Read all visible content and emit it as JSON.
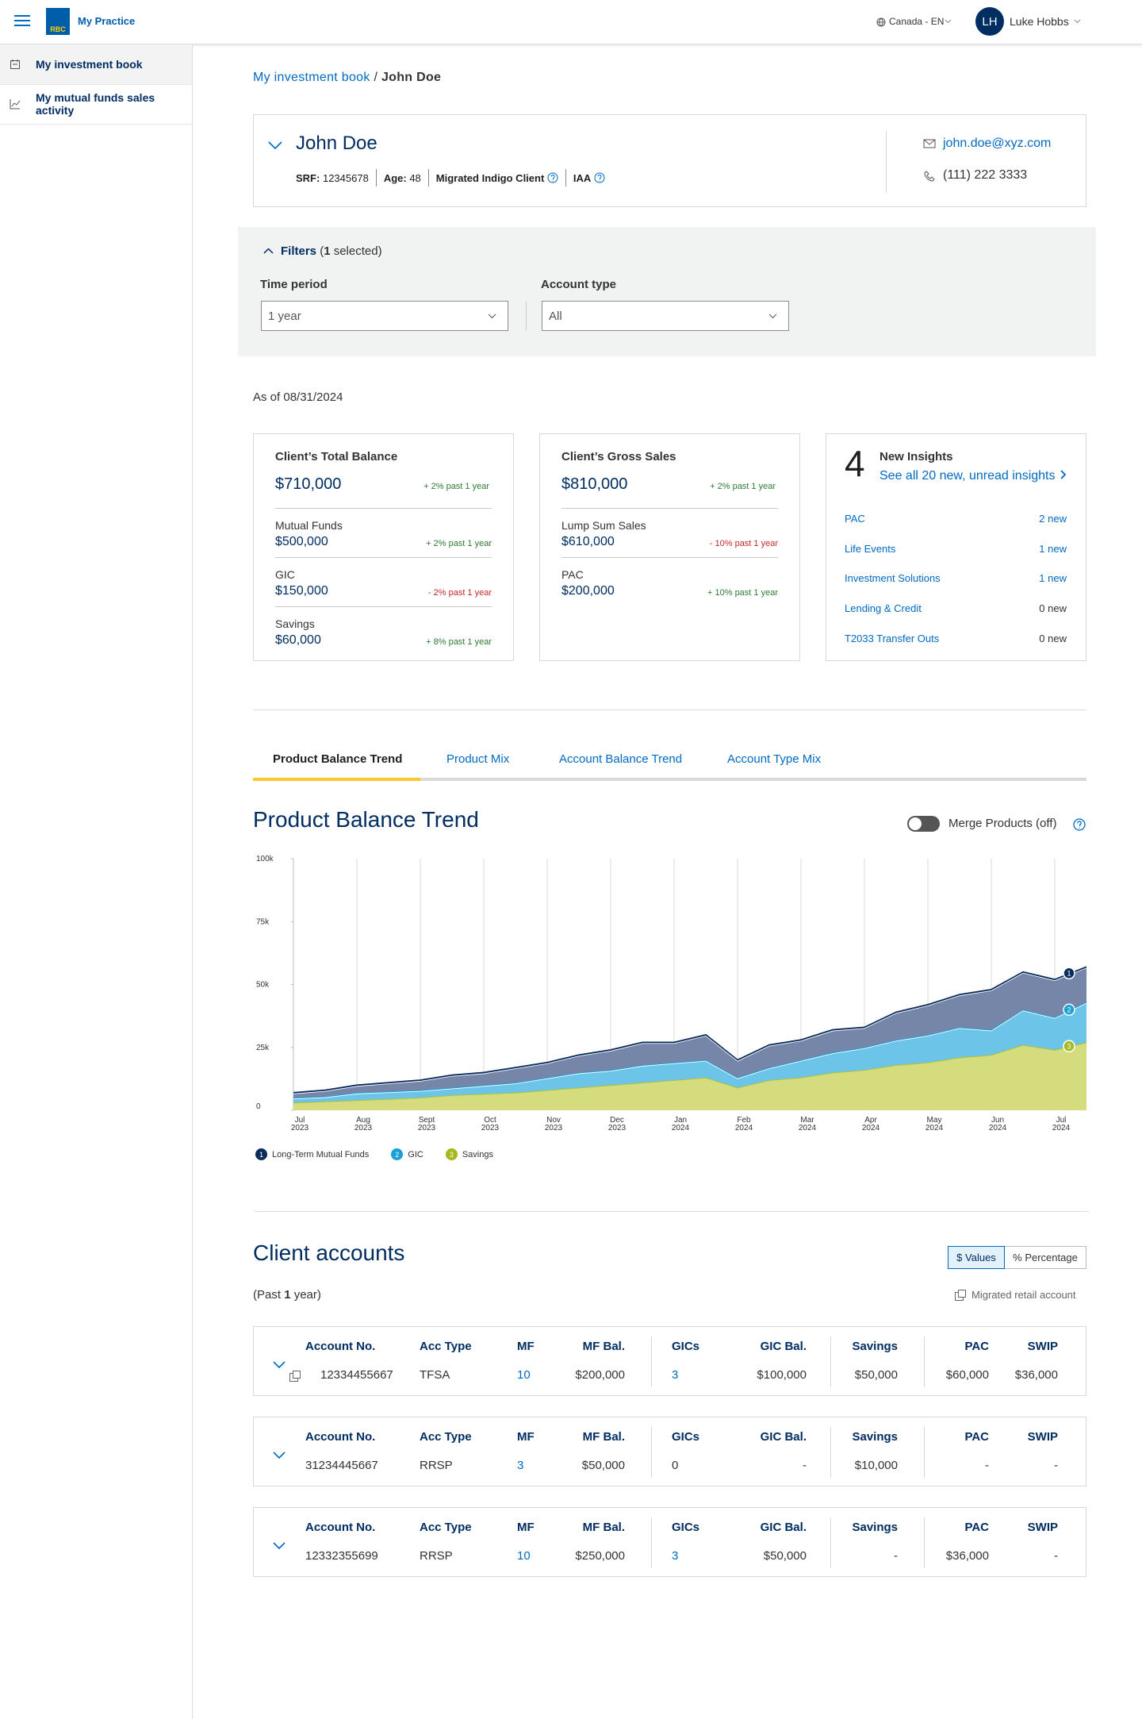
{
  "header": {
    "logo": "RBC",
    "brand": "My Practice",
    "locale": "Canada - EN",
    "user_initials": "LH",
    "user_name": "Luke Hobbs"
  },
  "sidebar": {
    "items": [
      "My investment book",
      "My mutual funds sales activity"
    ]
  },
  "breadcrumb": {
    "items": [
      "My investment book",
      "John Doe"
    ],
    "separator": "/"
  },
  "client": {
    "name": "John Doe",
    "srf_label": "SRF:",
    "srf": "12345678",
    "age_label": "Age:",
    "age": "48",
    "tags": [
      "Migrated Indigo Client",
      "IAA"
    ],
    "email": "john.doe@xyz.com",
    "phone": "(111) 222 3333"
  },
  "filters": {
    "title": "Filters",
    "count_open": "(",
    "count": "1",
    "count_close": " selected)",
    "fields": [
      {
        "label": "Time period",
        "value": "1 year"
      },
      {
        "label": "Account type",
        "value": "All"
      }
    ]
  },
  "as_of": "As of 08/31/2024",
  "cards": {
    "balance": {
      "title": "Client’s Total Balance",
      "total": "$710,000",
      "total_change": "+ 2% past 1 year",
      "total_change_color": "#2e7d32",
      "items": [
        {
          "label": "Mutual Funds",
          "value": "$500,000",
          "change": "+ 2% past 1 year",
          "change_color": "#2e7d32"
        },
        {
          "label": "GIC",
          "value": "$150,000",
          "change": "- 2% past 1 year",
          "change_color": "#c62828"
        },
        {
          "label": "Savings",
          "value": "$60,000",
          "change": "+ 8% past 1 year",
          "change_color": "#2e7d32"
        }
      ]
    },
    "gross": {
      "title": "Client’s Gross Sales",
      "total": "$810,000",
      "total_change": "+ 2% past 1 year",
      "total_change_color": "#2e7d32",
      "items": [
        {
          "label": "Lump Sum Sales",
          "value": "$610,000",
          "change": "- 10% past 1 year",
          "change_color": "#c62828"
        },
        {
          "label": "PAC",
          "value": "$200,000",
          "change": "+ 10% past 1 year",
          "change_color": "#2e7d32"
        }
      ]
    },
    "insights": {
      "count": "4",
      "title": "New Insights",
      "link": "See all 20 new, unread insights",
      "items": [
        {
          "label": "PAC",
          "value": "2 new",
          "value_color": "#006ac3"
        },
        {
          "label": "Life Events",
          "value": "1 new",
          "value_color": "#006ac3"
        },
        {
          "label": "Investment Solutions",
          "value": "1 new",
          "value_color": "#006ac3"
        },
        {
          "label": "Lending & Credit",
          "value": "0 new",
          "value_color": "#333333"
        },
        {
          "label": "T2033 Transfer Outs",
          "value": "0 new",
          "value_color": "#333333"
        }
      ]
    }
  },
  "tabs": {
    "items": [
      "Product Balance Trend",
      "Product Mix",
      "Account Balance Trend",
      "Account Type Mix"
    ],
    "active": 0
  },
  "chart_controls": {
    "toggle_label": "Merge Products (off)"
  },
  "chart_data": {
    "type": "area",
    "stacked": true,
    "title": "Product Balance Trend",
    "grid": "x",
    "categories": [
      "Jul\n2023",
      null,
      "Aug\n2023",
      null,
      "Sept\n2023",
      null,
      "Oct\n2023",
      null,
      "Nov\n2023",
      null,
      "Dec\n2023",
      null,
      "Jan\n2024",
      null,
      "Feb\n2024",
      null,
      "Mar\n2024",
      null,
      "Apr\n2024",
      null,
      "May\n2024",
      null,
      "Jun\n2024",
      null,
      "Jul\n2024",
      null
    ],
    "ylim": [
      0,
      100000
    ],
    "yticks": [
      0,
      {
        "value": 25000,
        "label": "25k"
      },
      {
        "value": 50000,
        "label": "50k"
      },
      {
        "value": 75000,
        "label": "75k"
      },
      {
        "value": 100000,
        "label": "100k"
      }
    ],
    "series": [
      {
        "name": "Long-Term Mutual Funds",
        "badge": "1",
        "color": "#7586a8",
        "line_color": "#0b2d5b",
        "marker_color": "#0b2d5b",
        "values": [
          2000,
          2500,
          3000,
          3500,
          4000,
          5000,
          5000,
          6000,
          6000,
          7000,
          8000,
          9000,
          8000,
          10000,
          7000,
          9000,
          8000,
          9000,
          8000,
          11000,
          12000,
          13000,
          16000,
          15000,
          15000,
          14000
        ]
      },
      {
        "name": "GIC",
        "badge": "2",
        "color": "#6cc4e8",
        "line_color": "#1a9fd6",
        "marker_color": "#1a9fd6",
        "values": [
          2000,
          2000,
          3000,
          3000,
          3000,
          3000,
          3500,
          4000,
          5000,
          6000,
          6000,
          7000,
          7000,
          7000,
          4000,
          5000,
          7000,
          8000,
          9000,
          10000,
          11000,
          12000,
          10000,
          14000,
          13000,
          16000
        ]
      },
      {
        "name": "Savings",
        "badge": "3",
        "color": "#d5dc7e",
        "line_color": "#b3c22a",
        "marker_color": "#a5b81c",
        "values": [
          3000,
          3500,
          4000,
          4500,
          5000,
          6000,
          6500,
          7000,
          8000,
          9000,
          10000,
          11000,
          12000,
          13000,
          9000,
          12000,
          13000,
          15000,
          16000,
          18000,
          19000,
          21000,
          22000,
          26000,
          24000,
          27000
        ]
      }
    ]
  },
  "accounts": {
    "title": "Client accounts",
    "toggle": [
      "$ Values",
      "% Percentage"
    ],
    "toggle_active": 0,
    "period": {
      "open": "(Past ",
      "count": "1",
      "close": " year)"
    },
    "migrated_legend": "Migrated retail account",
    "columns": [
      "Account No.",
      "Acc Type",
      "MF",
      "MF Bal.",
      "GICs",
      "GIC Bal.",
      "Savings",
      "PAC",
      "SWIP"
    ],
    "rows": [
      {
        "migrated": true,
        "cells": [
          "12334455667",
          "TFSA",
          {
            "text": "10",
            "link": true
          },
          "$200,000",
          {
            "text": "3",
            "link": true
          },
          "$100,000",
          "$50,000",
          "$60,000",
          "$36,000"
        ]
      },
      {
        "migrated": false,
        "cells": [
          "31234445667",
          "RRSP",
          {
            "text": "3",
            "link": true
          },
          "$50,000",
          "0",
          "-",
          "$10,000",
          "-",
          "-"
        ]
      },
      {
        "migrated": false,
        "cells": [
          "12332355699",
          "RRSP",
          {
            "text": "10",
            "link": true
          },
          "$250,000",
          {
            "text": "3",
            "link": true
          },
          "$50,000",
          "-",
          "$36,000",
          "-"
        ]
      }
    ]
  }
}
